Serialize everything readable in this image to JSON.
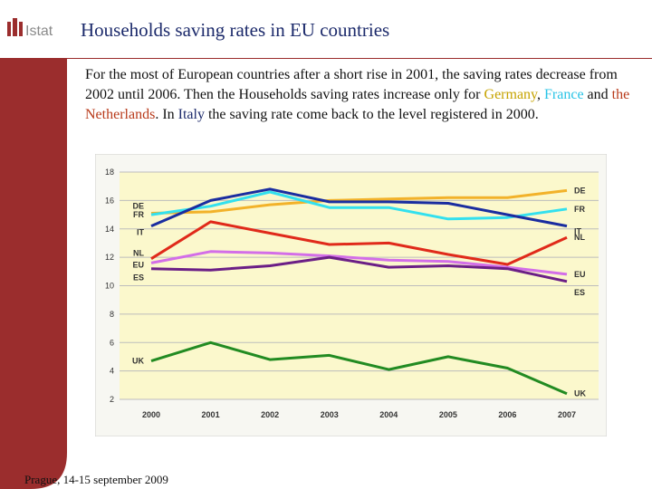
{
  "header": {
    "logo_text": "Istat",
    "title": "Households saving rates in EU countries"
  },
  "body": {
    "p1": "For the most of European countries after a short rise in 2001, the saving rates decrease from 2002 until 2006. Then the Households saving rates increase only for ",
    "germany": "Germany",
    "sep1": ", ",
    "france": "France",
    "and": "  and ",
    "netherlands": "the Netherlands",
    "p2": ". In ",
    "italy": "Italy",
    "p3": " the saving rate come back to the level registered in 2000."
  },
  "footer": {
    "text": "Prague, 14-15 september 2009"
  },
  "colors": {
    "sidebar": "#9b2d2d",
    "plot_bg": "#fbf8cc",
    "chart_bg": "#f7f7f2",
    "DE": "#f2b22a",
    "FR": "#33e0ee",
    "IT": "#1a2da0",
    "NL": "#e02a1a",
    "EU": "#d36ee8",
    "ES": "#6b1f86",
    "UK": "#228b22"
  },
  "chart_data": {
    "type": "line",
    "x": [
      "2000",
      "2001",
      "2002",
      "2003",
      "2004",
      "2005",
      "2006",
      "2007"
    ],
    "ylim": [
      2,
      18
    ],
    "yticks": [
      2,
      4,
      6,
      8,
      10,
      12,
      14,
      16,
      18
    ],
    "grid": true,
    "series": [
      {
        "name": "DE",
        "values": [
          15.1,
          15.2,
          15.7,
          16.0,
          16.1,
          16.2,
          16.2,
          16.7
        ]
      },
      {
        "name": "FR",
        "values": [
          15.0,
          15.6,
          16.6,
          15.5,
          15.5,
          14.7,
          14.8,
          15.4
        ]
      },
      {
        "name": "IT",
        "values": [
          14.2,
          16.0,
          16.8,
          15.9,
          15.9,
          15.8,
          15.0,
          14.2
        ]
      },
      {
        "name": "NL",
        "values": [
          11.9,
          14.5,
          13.7,
          12.9,
          13.0,
          12.2,
          11.5,
          13.4
        ]
      },
      {
        "name": "EU",
        "values": [
          11.6,
          12.4,
          12.3,
          12.1,
          11.8,
          11.7,
          11.3,
          10.8
        ]
      },
      {
        "name": "ES",
        "values": [
          11.2,
          11.1,
          11.4,
          12.0,
          11.3,
          11.4,
          11.2,
          10.3
        ]
      },
      {
        "name": "UK",
        "values": [
          4.7,
          6.0,
          4.8,
          5.1,
          4.1,
          5.0,
          4.2,
          2.4
        ]
      }
    ]
  }
}
